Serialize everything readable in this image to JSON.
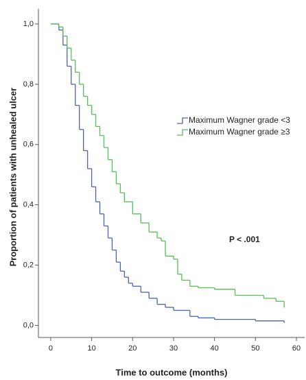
{
  "chart_data": {
    "type": "step",
    "x_label": "Time to outcome (months)",
    "y_label": "Proportion of patients with unhealed ulcer",
    "annotation": "P < .001",
    "xlim": [
      -3,
      62
    ],
    "ylim": [
      -0.04,
      1.05
    ],
    "xticks": [
      0,
      10,
      20,
      30,
      40,
      50,
      60
    ],
    "yticks": [
      {
        "value": 0,
        "label": "0,0"
      },
      {
        "value": 0.2,
        "label": "0,2"
      },
      {
        "value": 0.4,
        "label": "0,4"
      },
      {
        "value": 0.6,
        "label": "0,6"
      },
      {
        "value": 0.8,
        "label": "0,8"
      },
      {
        "value": 1,
        "label": "1,0"
      }
    ],
    "series": [
      {
        "name": "Maximum Wagner grade <3",
        "color": "#4a63ad",
        "x": [
          0,
          1,
          2,
          3,
          4,
          5,
          6,
          7,
          8,
          9,
          10,
          11,
          12,
          13,
          14,
          15,
          16,
          17,
          18,
          19,
          20,
          22,
          24,
          26,
          28,
          30,
          32,
          34,
          36,
          40,
          45,
          50,
          57
        ],
        "values": [
          1.0,
          1.0,
          0.98,
          0.93,
          0.86,
          0.8,
          0.73,
          0.65,
          0.58,
          0.52,
          0.46,
          0.41,
          0.37,
          0.33,
          0.29,
          0.25,
          0.21,
          0.18,
          0.16,
          0.14,
          0.13,
          0.11,
          0.09,
          0.07,
          0.06,
          0.05,
          0.05,
          0.03,
          0.025,
          0.02,
          0.02,
          0.015,
          0.01
        ]
      },
      {
        "name": "Maximum Wagner grade ≥3",
        "color": "#52bf52",
        "x": [
          0,
          1,
          2,
          3,
          4,
          5,
          6,
          7,
          8,
          9,
          10,
          11,
          12,
          13,
          14,
          15,
          16,
          17,
          18,
          20,
          22,
          24,
          26,
          27,
          28,
          30,
          31,
          32,
          34,
          36,
          40,
          45,
          52,
          55,
          57
        ],
        "values": [
          1.0,
          1.0,
          0.99,
          0.96,
          0.92,
          0.88,
          0.84,
          0.8,
          0.76,
          0.73,
          0.7,
          0.66,
          0.63,
          0.59,
          0.55,
          0.51,
          0.47,
          0.44,
          0.41,
          0.37,
          0.34,
          0.31,
          0.29,
          0.28,
          0.23,
          0.22,
          0.17,
          0.15,
          0.13,
          0.125,
          0.12,
          0.1,
          0.09,
          0.08,
          0.06
        ]
      }
    ]
  }
}
